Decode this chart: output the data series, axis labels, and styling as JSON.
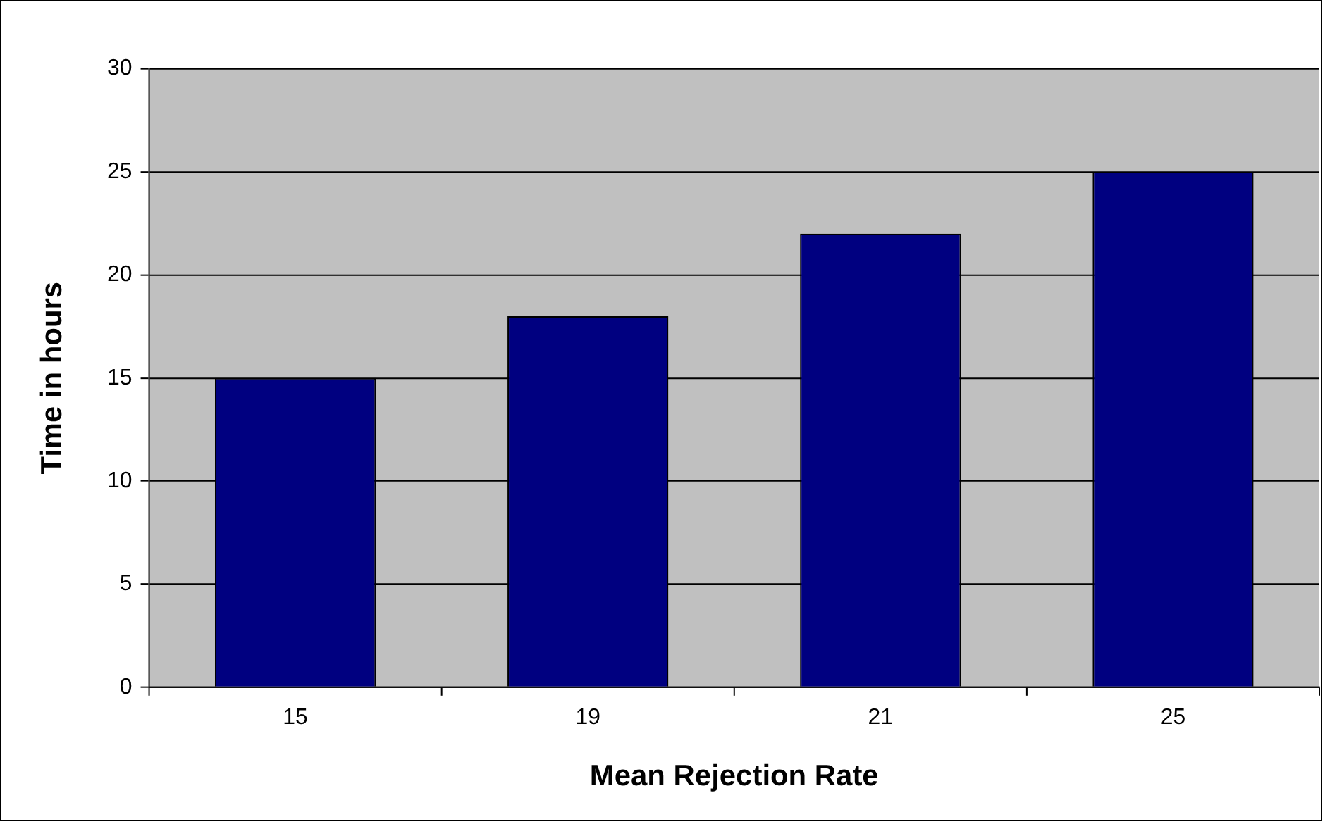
{
  "chart_data": {
    "type": "bar",
    "xlabel": "Mean Rejection Rate",
    "ylabel": "Time in hours",
    "categories": [
      "15",
      "19",
      "21",
      "25"
    ],
    "values": [
      15,
      18,
      22,
      25
    ],
    "color": "#000080",
    "ylim": [
      0,
      30
    ],
    "yticks": [
      0,
      5,
      10,
      15,
      20,
      25,
      30
    ],
    "grid": "y",
    "legend": false
  }
}
